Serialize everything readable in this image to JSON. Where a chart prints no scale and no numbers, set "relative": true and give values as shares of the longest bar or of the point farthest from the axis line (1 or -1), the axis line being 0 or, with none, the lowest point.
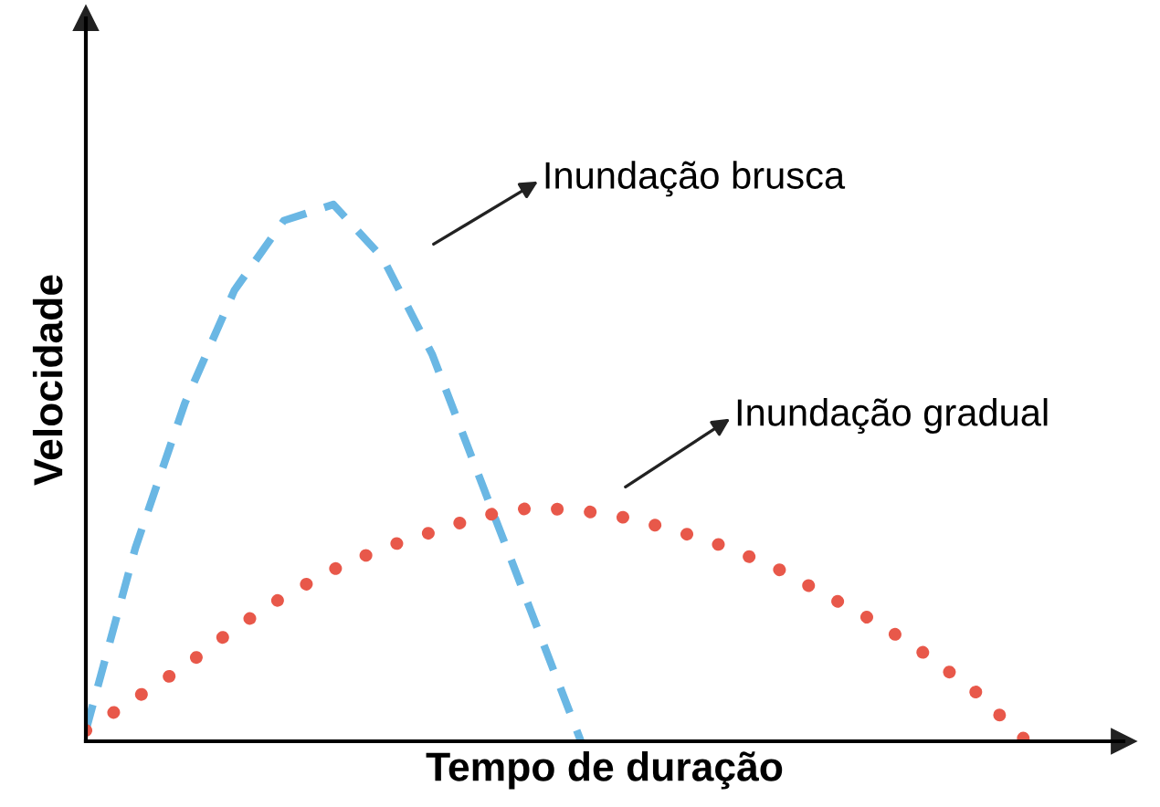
{
  "chart_data": {
    "type": "line",
    "relative": true,
    "xlabel": "Tempo de duração",
    "ylabel": "Velocidade",
    "legend": false,
    "categories": [
      null,
      null,
      null,
      null,
      null,
      null,
      null,
      null,
      null,
      null,
      null,
      null,
      null,
      null,
      null,
      null,
      null,
      null,
      null,
      null
    ],
    "series": [
      {
        "name": "Inundação brusca",
        "color": "#6ab7e4",
        "line_style": "dashed",
        "values": [
          0.02,
          0.36,
          0.63,
          0.84,
          0.97,
          1.0,
          0.9,
          0.72,
          0.48,
          0.24,
          0,
          null,
          null,
          null,
          null,
          null,
          null,
          null,
          null,
          null
        ]
      },
      {
        "name": "Inundação gradual",
        "color": "#e8584a",
        "line_style": "dotted",
        "values": [
          0.02,
          0.08,
          0.14,
          0.21,
          0.27,
          0.32,
          0.36,
          0.39,
          0.42,
          0.435,
          0.43,
          0.415,
          0.39,
          0.36,
          0.32,
          0.27,
          0.22,
          0.16,
          0.09,
          0
        ]
      }
    ]
  }
}
